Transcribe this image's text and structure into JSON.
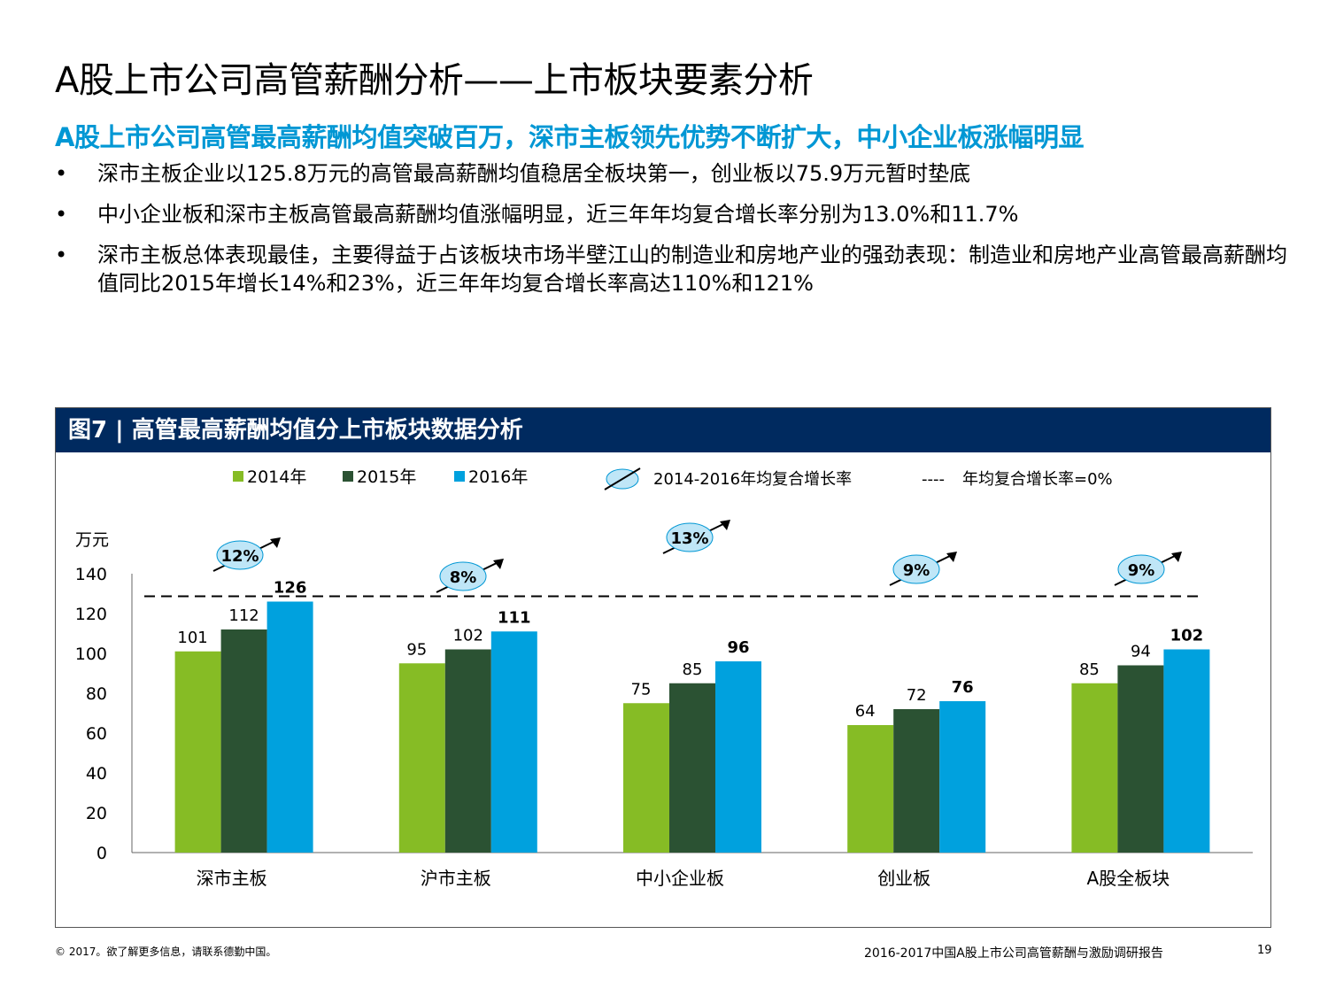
{
  "title": "A股上市公司高管薪酬分析——上市板块要素分析",
  "subtitle": "A股上市公司高管最高薪酬均值突破百万，深市主板领先优势不断扩大，中小企业板涨幅明显",
  "bullets": [
    "深市主板企业以125.8万元的高管最高薪酬均值稳居全板块第一，创业板以75.9万元暂时垫底",
    "中小企业板和深市主板高管最高薪酬均值涨幅明显，近三年年均复合增长率分别为13.0%和11.7%",
    "深市主板总体表现最佳，主要得益于占该板块市场半壁江山的制造业和房地产业的强劲表现：制造业和房地产业高管最高薪酬均值同比2015年增长14%和23%，近三年年均复合增长率高达110%和121%"
  ],
  "bullet_symbol": "•",
  "panel_title": "图7 | 高管最高薪酬均值分上市板块数据分析",
  "chart_data": {
    "type": "bar",
    "ylabel": "万元",
    "ylim": [
      0,
      140
    ],
    "yticks": [
      "0",
      "20",
      "40",
      "60",
      "80",
      "100",
      "120",
      "140"
    ],
    "categories": [
      "深市主板",
      "沪市主板",
      "中小企业板",
      "创业板",
      "A股全板块"
    ],
    "series": [
      {
        "name": "2014年",
        "color": "#86bc25",
        "values": [
          101,
          95,
          75,
          64,
          85
        ],
        "labels": [
          "101",
          "95",
          "75",
          "64",
          "85"
        ]
      },
      {
        "name": "2015年",
        "color": "#2b5233",
        "values": [
          112,
          102,
          85,
          72,
          94
        ],
        "labels": [
          "112",
          "102",
          "85",
          "72",
          "94"
        ]
      },
      {
        "name": "2016年",
        "color": "#00a1de",
        "values": [
          126,
          111,
          96,
          76,
          102
        ],
        "labels": [
          "126",
          "111",
          "96",
          "76",
          "102"
        ]
      }
    ],
    "growth_rates": [
      "12%",
      "8%",
      "13%",
      "9%",
      "9%"
    ],
    "growth_legend": "2014-2016年均复合增长率",
    "reference_line_legend": "年均复合增长率=0%",
    "reference_line_symbol": "----",
    "legend_position": "top",
    "grid": false
  },
  "footer": {
    "left": "© 2017。欲了解更多信息，请联系德勤中国。",
    "right": "2016-2017中国A股上市公司高管薪酬与激励调研报告",
    "page": "19"
  }
}
